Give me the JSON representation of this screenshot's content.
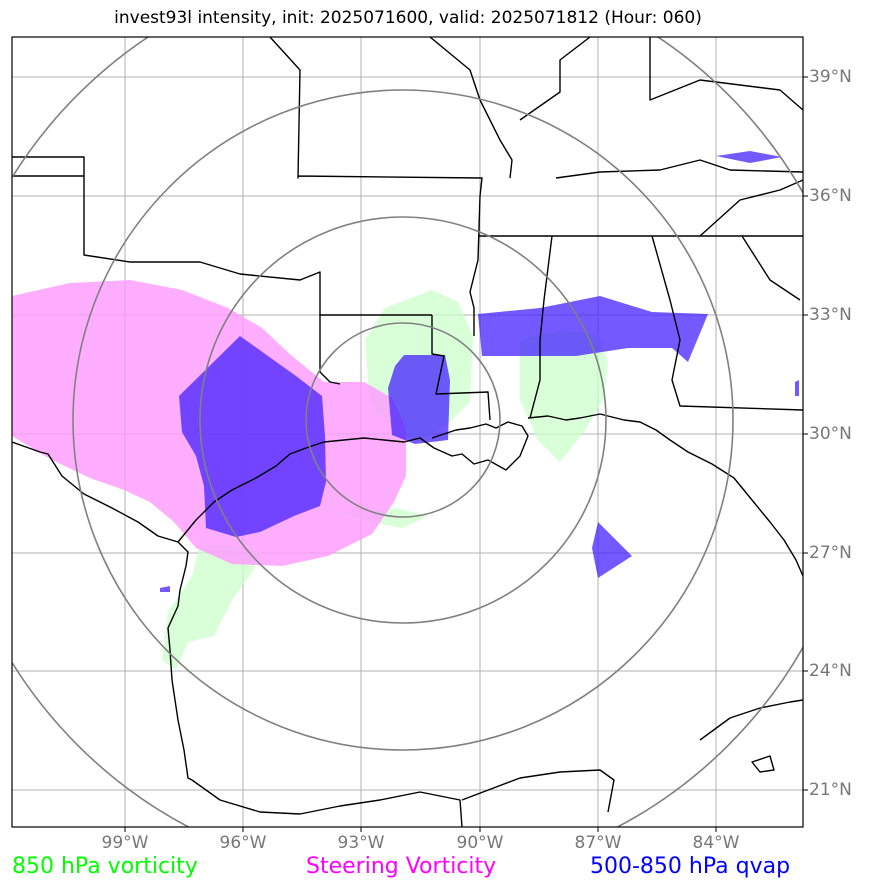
{
  "title": "invest93l intensity, init: 2025071600, valid: 2025071812 (Hour: 060)",
  "lat_labels": [
    "39°N",
    "36°N",
    "33°N",
    "30°N",
    "27°N",
    "24°N",
    "21°N"
  ],
  "lon_labels": [
    "99°W",
    "96°W",
    "93°W",
    "90°W",
    "87°W",
    "84°W"
  ],
  "legend": [
    {
      "label": "850 hPa vorticity",
      "color": "#00ff00"
    },
    {
      "label": "Steering Vorticity",
      "color": "#ff00ff"
    },
    {
      "label": "500-850 hPa qvap",
      "color": "#0000ff"
    }
  ],
  "colors": {
    "vorticity_850": "#ccffcc",
    "steering_vorticity": "#ff99ff",
    "qvap": "#4433ff",
    "range_rings": "#808080",
    "gridlines": "#b0b0b0",
    "coastlines": "#000000"
  }
}
